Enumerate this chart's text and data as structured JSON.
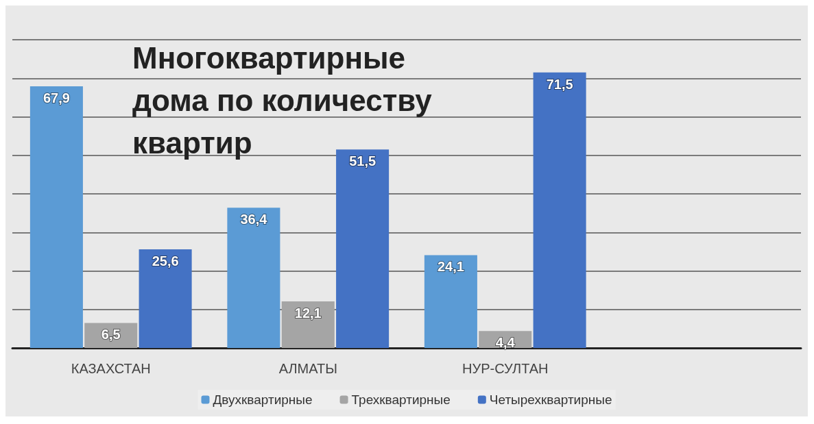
{
  "chart_data": {
    "type": "bar",
    "title": "Многоквартирные дома по количеству квартир",
    "categories": [
      "КАЗАХСТАН",
      "АЛМАТЫ",
      "НУР-СУЛТАН",
      null
    ],
    "series": [
      {
        "name": "Двухквартирные",
        "color": "#5b9bd5",
        "values": [
          67.9,
          36.4,
          24.1,
          null
        ],
        "value_labels": [
          "67,9",
          "36,4",
          "24,1",
          null
        ]
      },
      {
        "name": "Трехквартирные",
        "color": "#a5a5a5",
        "values": [
          6.5,
          12.1,
          4.4,
          null
        ],
        "value_labels": [
          "6,5",
          "12,1",
          "4,4",
          null
        ]
      },
      {
        "name": "Четырехквартирные",
        "color": "#4472c4",
        "values": [
          25.6,
          51.5,
          71.5,
          null
        ],
        "value_labels": [
          "25,6",
          "51,5",
          "71,5",
          null
        ]
      }
    ],
    "tick_labels": "x",
    "grid": "y",
    "legend": "bottom"
  }
}
